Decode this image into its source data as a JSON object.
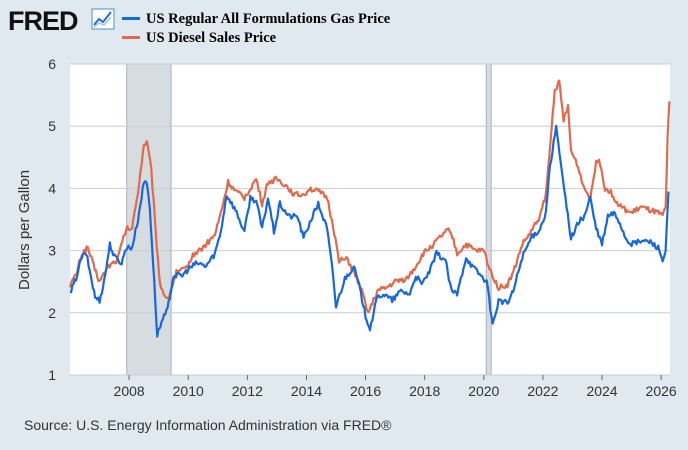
{
  "header": {
    "logo_text": "FRED",
    "logo_icon": "trend-graph-icon"
  },
  "colors": {
    "gas": "#1668e0",
    "diesel": "#e26a4a",
    "recession": "#d7dce1",
    "grid": "#c7ced4",
    "background": "#e1e9f0",
    "plot_bg": "#ffffff"
  },
  "chart_data": {
    "type": "line",
    "title": "",
    "xlabel": "",
    "ylabel": "Dollars per Gallon",
    "ylim": [
      1,
      6
    ],
    "xlim": [
      2006.0,
      2026.3
    ],
    "yticks": [
      1,
      2,
      3,
      4,
      5,
      6
    ],
    "xticks": [
      2008,
      2010,
      2012,
      2014,
      2016,
      2018,
      2020,
      2022,
      2024,
      2026
    ],
    "recessions": [
      [
        2007.92,
        2009.42
      ],
      [
        2020.08,
        2020.25
      ]
    ],
    "legend_position": "top",
    "series": [
      {
        "name": "US Regular All Formulations Gas Price",
        "color": "#1668e0",
        "points": [
          [
            2006.0,
            2.3
          ],
          [
            2006.2,
            2.55
          ],
          [
            2006.4,
            2.9
          ],
          [
            2006.55,
            2.95
          ],
          [
            2006.7,
            2.6
          ],
          [
            2006.85,
            2.25
          ],
          [
            2007.0,
            2.2
          ],
          [
            2007.15,
            2.5
          ],
          [
            2007.35,
            3.1
          ],
          [
            2007.5,
            2.9
          ],
          [
            2007.75,
            2.8
          ],
          [
            2007.9,
            3.05
          ],
          [
            2008.1,
            3.05
          ],
          [
            2008.3,
            3.5
          ],
          [
            2008.5,
            4.1
          ],
          [
            2008.6,
            4.1
          ],
          [
            2008.7,
            3.7
          ],
          [
            2008.85,
            2.5
          ],
          [
            2008.95,
            1.65
          ],
          [
            2009.1,
            1.85
          ],
          [
            2009.3,
            2.05
          ],
          [
            2009.5,
            2.6
          ],
          [
            2009.8,
            2.6
          ],
          [
            2010.0,
            2.7
          ],
          [
            2010.3,
            2.8
          ],
          [
            2010.6,
            2.75
          ],
          [
            2010.9,
            2.95
          ],
          [
            2011.1,
            3.3
          ],
          [
            2011.3,
            3.9
          ],
          [
            2011.6,
            3.65
          ],
          [
            2011.9,
            3.3
          ],
          [
            2012.1,
            3.85
          ],
          [
            2012.3,
            3.8
          ],
          [
            2012.5,
            3.35
          ],
          [
            2012.7,
            3.85
          ],
          [
            2012.9,
            3.3
          ],
          [
            2013.1,
            3.75
          ],
          [
            2013.4,
            3.55
          ],
          [
            2013.7,
            3.55
          ],
          [
            2013.9,
            3.2
          ],
          [
            2014.2,
            3.55
          ],
          [
            2014.4,
            3.75
          ],
          [
            2014.7,
            3.35
          ],
          [
            2014.9,
            2.6
          ],
          [
            2015.0,
            2.1
          ],
          [
            2015.3,
            2.55
          ],
          [
            2015.6,
            2.75
          ],
          [
            2015.8,
            2.4
          ],
          [
            2016.0,
            1.95
          ],
          [
            2016.15,
            1.75
          ],
          [
            2016.4,
            2.25
          ],
          [
            2016.6,
            2.3
          ],
          [
            2016.9,
            2.2
          ],
          [
            2017.2,
            2.35
          ],
          [
            2017.5,
            2.3
          ],
          [
            2017.7,
            2.6
          ],
          [
            2017.9,
            2.45
          ],
          [
            2018.2,
            2.7
          ],
          [
            2018.4,
            2.95
          ],
          [
            2018.7,
            2.85
          ],
          [
            2018.9,
            2.35
          ],
          [
            2019.1,
            2.3
          ],
          [
            2019.4,
            2.9
          ],
          [
            2019.6,
            2.75
          ],
          [
            2019.9,
            2.6
          ],
          [
            2020.1,
            2.5
          ],
          [
            2020.3,
            1.8
          ],
          [
            2020.5,
            2.2
          ],
          [
            2020.8,
            2.15
          ],
          [
            2021.0,
            2.35
          ],
          [
            2021.3,
            2.9
          ],
          [
            2021.6,
            3.2
          ],
          [
            2021.9,
            3.35
          ],
          [
            2022.1,
            3.6
          ],
          [
            2022.2,
            4.2
          ],
          [
            2022.45,
            5.0
          ],
          [
            2022.6,
            4.4
          ],
          [
            2022.8,
            3.7
          ],
          [
            2022.95,
            3.2
          ],
          [
            2023.2,
            3.45
          ],
          [
            2023.4,
            3.55
          ],
          [
            2023.6,
            3.85
          ],
          [
            2023.8,
            3.35
          ],
          [
            2024.0,
            3.1
          ],
          [
            2024.2,
            3.55
          ],
          [
            2024.4,
            3.6
          ],
          [
            2024.6,
            3.45
          ],
          [
            2024.8,
            3.2
          ],
          [
            2025.0,
            3.1
          ],
          [
            2025.3,
            3.15
          ],
          [
            2025.6,
            3.15
          ],
          [
            2025.9,
            3.05
          ],
          [
            2026.05,
            2.85
          ],
          [
            2026.15,
            2.95
          ],
          [
            2026.25,
            3.95
          ]
        ]
      },
      {
        "name": "US Diesel Sales Price",
        "color": "#e26a4a",
        "points": [
          [
            2006.0,
            2.45
          ],
          [
            2006.2,
            2.6
          ],
          [
            2006.4,
            2.95
          ],
          [
            2006.6,
            3.05
          ],
          [
            2006.8,
            2.75
          ],
          [
            2007.0,
            2.5
          ],
          [
            2007.3,
            2.75
          ],
          [
            2007.6,
            2.85
          ],
          [
            2007.9,
            3.35
          ],
          [
            2008.1,
            3.35
          ],
          [
            2008.3,
            3.95
          ],
          [
            2008.5,
            4.7
          ],
          [
            2008.6,
            4.75
          ],
          [
            2008.75,
            4.3
          ],
          [
            2008.9,
            3.3
          ],
          [
            2009.05,
            2.45
          ],
          [
            2009.3,
            2.2
          ],
          [
            2009.6,
            2.65
          ],
          [
            2009.9,
            2.7
          ],
          [
            2010.2,
            2.95
          ],
          [
            2010.5,
            3.05
          ],
          [
            2010.9,
            3.25
          ],
          [
            2011.1,
            3.6
          ],
          [
            2011.35,
            4.1
          ],
          [
            2011.6,
            3.95
          ],
          [
            2011.9,
            3.85
          ],
          [
            2012.1,
            4.0
          ],
          [
            2012.3,
            4.15
          ],
          [
            2012.5,
            3.75
          ],
          [
            2012.7,
            4.1
          ],
          [
            2013.0,
            4.15
          ],
          [
            2013.3,
            4.05
          ],
          [
            2013.6,
            3.9
          ],
          [
            2013.9,
            3.9
          ],
          [
            2014.1,
            4.0
          ],
          [
            2014.4,
            3.95
          ],
          [
            2014.7,
            3.85
          ],
          [
            2014.9,
            3.4
          ],
          [
            2015.1,
            2.85
          ],
          [
            2015.4,
            2.85
          ],
          [
            2015.7,
            2.55
          ],
          [
            2015.9,
            2.3
          ],
          [
            2016.1,
            2.0
          ],
          [
            2016.4,
            2.35
          ],
          [
            2016.7,
            2.4
          ],
          [
            2017.0,
            2.5
          ],
          [
            2017.4,
            2.55
          ],
          [
            2017.7,
            2.75
          ],
          [
            2017.95,
            2.95
          ],
          [
            2018.3,
            3.1
          ],
          [
            2018.6,
            3.25
          ],
          [
            2018.85,
            3.35
          ],
          [
            2019.1,
            2.95
          ],
          [
            2019.4,
            3.1
          ],
          [
            2019.7,
            3.0
          ],
          [
            2020.0,
            3.0
          ],
          [
            2020.2,
            2.7
          ],
          [
            2020.5,
            2.4
          ],
          [
            2020.8,
            2.45
          ],
          [
            2021.0,
            2.65
          ],
          [
            2021.3,
            3.1
          ],
          [
            2021.6,
            3.3
          ],
          [
            2021.9,
            3.55
          ],
          [
            2022.1,
            3.9
          ],
          [
            2022.25,
            4.7
          ],
          [
            2022.4,
            5.6
          ],
          [
            2022.55,
            5.7
          ],
          [
            2022.7,
            5.1
          ],
          [
            2022.85,
            5.3
          ],
          [
            2022.95,
            4.6
          ],
          [
            2023.15,
            4.4
          ],
          [
            2023.4,
            4.0
          ],
          [
            2023.6,
            3.85
          ],
          [
            2023.8,
            4.4
          ],
          [
            2023.9,
            4.5
          ],
          [
            2024.1,
            4.0
          ],
          [
            2024.3,
            3.95
          ],
          [
            2024.5,
            3.75
          ],
          [
            2024.8,
            3.65
          ],
          [
            2025.0,
            3.6
          ],
          [
            2025.3,
            3.7
          ],
          [
            2025.6,
            3.65
          ],
          [
            2025.9,
            3.6
          ],
          [
            2026.05,
            3.55
          ],
          [
            2026.15,
            3.7
          ],
          [
            2026.22,
            4.8
          ],
          [
            2026.28,
            5.4
          ]
        ]
      }
    ]
  },
  "source_text": "Source: U.S. Energy Information Administration via FRED®"
}
